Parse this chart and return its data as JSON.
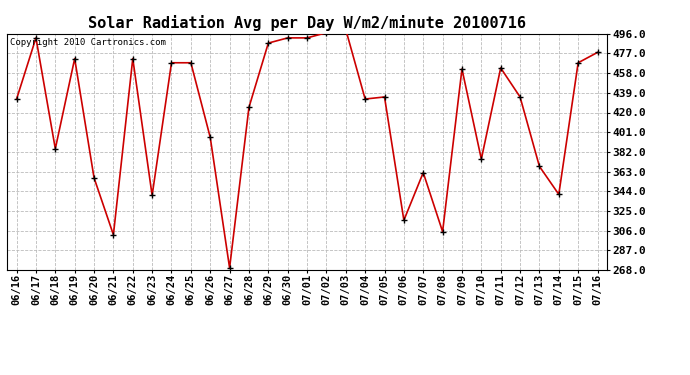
{
  "title": "Solar Radiation Avg per Day W/m2/minute 20100716",
  "copyright": "Copyright 2010 Cartronics.com",
  "dates": [
    "06/16",
    "06/17",
    "06/18",
    "06/19",
    "06/20",
    "06/21",
    "06/22",
    "06/23",
    "06/24",
    "06/25",
    "06/26",
    "06/27",
    "06/28",
    "06/29",
    "06/30",
    "07/01",
    "07/02",
    "07/03",
    "07/04",
    "07/05",
    "07/06",
    "07/07",
    "07/08",
    "07/09",
    "07/10",
    "07/11",
    "07/12",
    "07/13",
    "07/14",
    "07/15",
    "07/16"
  ],
  "values": [
    433,
    492,
    385,
    472,
    357,
    302,
    472,
    340,
    468,
    468,
    396,
    270,
    425,
    487,
    492,
    492,
    497,
    500,
    433,
    435,
    316,
    362,
    305,
    462,
    375,
    463,
    435,
    368,
    341,
    468,
    478
  ],
  "ylim": [
    268.0,
    496.0
  ],
  "yticks": [
    268.0,
    287.0,
    306.0,
    325.0,
    344.0,
    363.0,
    382.0,
    401.0,
    420.0,
    439.0,
    458.0,
    477.0,
    496.0
  ],
  "line_color": "#cc0000",
  "marker": "+",
  "marker_color": "#000000",
  "bg_color": "#ffffff",
  "grid_color": "#bbbbbb",
  "title_fontsize": 11,
  "copyright_fontsize": 6.5,
  "tick_fontsize": 7.5,
  "ytick_fontsize": 8
}
